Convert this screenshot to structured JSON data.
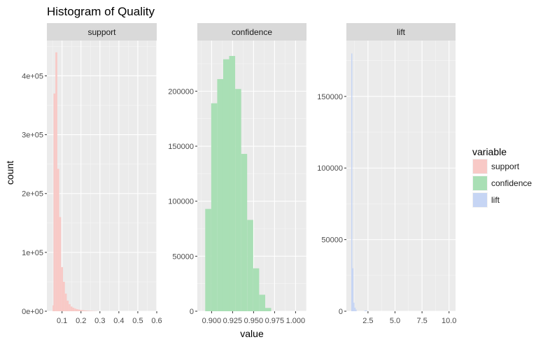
{
  "chart_data": {
    "type": "bar",
    "title": "Histogram of Quality",
    "xlabel": "value",
    "ylabel": "count",
    "legend": {
      "title": "variable",
      "placement": "right",
      "entries": [
        {
          "label": "support",
          "color": "#f8c9c6"
        },
        {
          "label": "confidence",
          "color": "#a9dfb5"
        },
        {
          "label": "lift",
          "color": "#c6d5f4"
        }
      ]
    },
    "grid": true,
    "panels": [
      {
        "strip": "support",
        "xlim": [
          0.02,
          0.6
        ],
        "ylim": [
          0,
          460000
        ],
        "x_ticks": [
          {
            "value": 0.1,
            "label": "0.1"
          },
          {
            "value": 0.2,
            "label": "0.2"
          },
          {
            "value": 0.3,
            "label": "0.3"
          },
          {
            "value": 0.4,
            "label": "0.4"
          },
          {
            "value": 0.5,
            "label": "0.5"
          },
          {
            "value": 0.6,
            "label": "0.6"
          }
        ],
        "y_ticks": [
          {
            "value": 0,
            "label": "0e+00"
          },
          {
            "value": 100000,
            "label": "1e+05"
          },
          {
            "value": 200000,
            "label": "2e+05"
          },
          {
            "value": 300000,
            "label": "3e+05"
          },
          {
            "value": 400000,
            "label": "4e+05"
          }
        ],
        "color": "#f8c9c6",
        "bin_width": 0.01,
        "bins": [
          {
            "x": 0.05,
            "count": 10000
          },
          {
            "x": 0.055,
            "count": 370000
          },
          {
            "x": 0.065,
            "count": 440000
          },
          {
            "x": 0.075,
            "count": 242000
          },
          {
            "x": 0.085,
            "count": 160000
          },
          {
            "x": 0.095,
            "count": 75000
          },
          {
            "x": 0.105,
            "count": 50000
          },
          {
            "x": 0.115,
            "count": 30000
          },
          {
            "x": 0.125,
            "count": 18000
          },
          {
            "x": 0.135,
            "count": 12000
          },
          {
            "x": 0.145,
            "count": 8000
          },
          {
            "x": 0.155,
            "count": 6000
          },
          {
            "x": 0.165,
            "count": 4500
          },
          {
            "x": 0.175,
            "count": 3500
          },
          {
            "x": 0.185,
            "count": 2800
          },
          {
            "x": 0.195,
            "count": 2200
          },
          {
            "x": 0.205,
            "count": 1800
          },
          {
            "x": 0.215,
            "count": 1400
          },
          {
            "x": 0.225,
            "count": 1100
          },
          {
            "x": 0.235,
            "count": 900
          },
          {
            "x": 0.245,
            "count": 700
          },
          {
            "x": 0.255,
            "count": 500
          },
          {
            "x": 0.265,
            "count": 400
          },
          {
            "x": 0.275,
            "count": 300
          }
        ]
      },
      {
        "strip": "confidence",
        "xlim": [
          0.883,
          1.013
        ],
        "ylim": [
          0,
          246000
        ],
        "x_ticks": [
          {
            "value": 0.9,
            "label": "0.900"
          },
          {
            "value": 0.925,
            "label": "0.925"
          },
          {
            "value": 0.95,
            "label": "0.950"
          },
          {
            "value": 0.975,
            "label": "0.975"
          },
          {
            "value": 1.0,
            "label": "1.000"
          }
        ],
        "y_ticks": [
          {
            "value": 0,
            "label": "0"
          },
          {
            "value": 50000,
            "label": "50000"
          },
          {
            "value": 100000,
            "label": "100000"
          },
          {
            "value": 150000,
            "label": "150000"
          },
          {
            "value": 200000,
            "label": "200000"
          }
        ],
        "color": "#a9dfb5",
        "bin_width": 0.00714,
        "bins": [
          {
            "x": 0.8924,
            "count": 93000
          },
          {
            "x": 0.8995,
            "count": 189000
          },
          {
            "x": 0.9067,
            "count": 211000
          },
          {
            "x": 0.9138,
            "count": 229000
          },
          {
            "x": 0.9209,
            "count": 232000
          },
          {
            "x": 0.9281,
            "count": 202000
          },
          {
            "x": 0.9352,
            "count": 143000
          },
          {
            "x": 0.9424,
            "count": 83000
          },
          {
            "x": 0.9495,
            "count": 39000
          },
          {
            "x": 0.9567,
            "count": 15000
          },
          {
            "x": 0.9638,
            "count": 3000
          }
        ]
      },
      {
        "strip": "lift",
        "xlim": [
          0.5,
          10.6
        ],
        "ylim": [
          0,
          189000
        ],
        "x_ticks": [
          {
            "value": 2.5,
            "label": "2.5"
          },
          {
            "value": 5.0,
            "label": "5.0"
          },
          {
            "value": 7.5,
            "label": "7.5"
          },
          {
            "value": 10.0,
            "label": "10.0"
          }
        ],
        "y_ticks": [
          {
            "value": 0,
            "label": "0"
          },
          {
            "value": 50000,
            "label": "50000"
          },
          {
            "value": 100000,
            "label": "100000"
          },
          {
            "value": 150000,
            "label": "150000"
          }
        ],
        "color": "#c6d5f4",
        "bin_width": 0.1,
        "bins": [
          {
            "x": 0.95,
            "count": 180000
          },
          {
            "x": 1.05,
            "count": 30000
          },
          {
            "x": 1.15,
            "count": 6000
          },
          {
            "x": 1.25,
            "count": 2500
          },
          {
            "x": 1.35,
            "count": 1200
          },
          {
            "x": 2.15,
            "count": 300
          },
          {
            "x": 2.25,
            "count": 600
          },
          {
            "x": 2.35,
            "count": 300
          }
        ]
      }
    ]
  }
}
